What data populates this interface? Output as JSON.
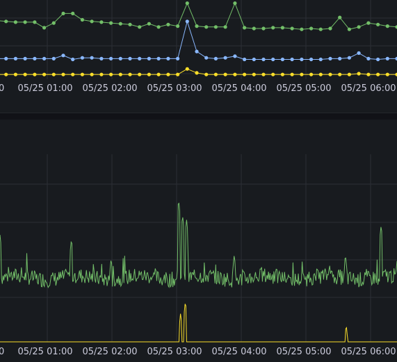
{
  "colors": {
    "background": "#111217",
    "panel": "#181b1f",
    "grid": "#2c2f35",
    "text": "#ccccdc",
    "green": "#73bf69",
    "blue": "#8ab8ff",
    "yellow": "#fade2a"
  },
  "chart_data": [
    {
      "type": "line",
      "x_tick_labels": [
        "00",
        "05/25 01:00",
        "05/25 02:00",
        "05/25 03:00",
        "05/25 04:00",
        "05/25 05:00",
        "05/25 06:00"
      ],
      "grid": true,
      "series": [
        {
          "color_key": "green",
          "points": "markers",
          "values": [
            0.74,
            0.73,
            0.72,
            0.72,
            0.72,
            0.65,
            0.71,
            0.83,
            0.83,
            0.75,
            0.73,
            0.72,
            0.71,
            0.7,
            0.69,
            0.66,
            0.7,
            0.66,
            0.69,
            0.67,
            0.96,
            0.67,
            0.66,
            0.66,
            0.66,
            0.96,
            0.65,
            0.64,
            0.64,
            0.65,
            0.65,
            0.64,
            0.63,
            0.64,
            0.63,
            0.64,
            0.78,
            0.63,
            0.66,
            0.71,
            0.69,
            0.67,
            0.66
          ]
        },
        {
          "color_key": "blue",
          "points": "markers",
          "values": [
            0.26,
            0.26,
            0.26,
            0.26,
            0.26,
            0.26,
            0.26,
            0.3,
            0.25,
            0.27,
            0.27,
            0.26,
            0.26,
            0.26,
            0.26,
            0.26,
            0.26,
            0.26,
            0.26,
            0.26,
            0.73,
            0.35,
            0.27,
            0.26,
            0.27,
            0.29,
            0.25,
            0.25,
            0.25,
            0.25,
            0.25,
            0.25,
            0.25,
            0.25,
            0.25,
            0.26,
            0.26,
            0.27,
            0.33,
            0.26,
            0.25,
            0.26,
            0.26
          ]
        },
        {
          "color_key": "yellow",
          "points": "markers",
          "values": [
            0.06,
            0.06,
            0.06,
            0.06,
            0.06,
            0.06,
            0.06,
            0.06,
            0.06,
            0.06,
            0.06,
            0.06,
            0.06,
            0.06,
            0.06,
            0.06,
            0.06,
            0.06,
            0.06,
            0.06,
            0.13,
            0.08,
            0.06,
            0.06,
            0.06,
            0.06,
            0.06,
            0.06,
            0.06,
            0.06,
            0.06,
            0.06,
            0.06,
            0.06,
            0.06,
            0.06,
            0.06,
            0.06,
            0.07,
            0.06,
            0.06,
            0.06,
            0.06
          ]
        }
      ]
    },
    {
      "type": "line",
      "x_tick_labels": [
        "00",
        "05/25 01:00",
        "05/25 02:00",
        "05/25 03:00",
        "05/25 04:00",
        "05/25 05:00",
        "05/25 06:00"
      ],
      "grid": true,
      "series": [
        {
          "color_key": "green",
          "points": "none",
          "noisy": true,
          "base": 0.33,
          "spikes": [
            {
              "at": 0.0,
              "h": 0.55
            },
            {
              "at": 0.18,
              "h": 0.53
            },
            {
              "at": 0.28,
              "h": 0.43
            },
            {
              "at": 0.45,
              "h": 0.73
            },
            {
              "at": 0.46,
              "h": 0.65
            },
            {
              "at": 0.47,
              "h": 0.63
            },
            {
              "at": 0.59,
              "h": 0.45
            },
            {
              "at": 0.83,
              "h": 0.4
            },
            {
              "at": 0.87,
              "h": 0.45
            },
            {
              "at": 0.96,
              "h": 0.6
            }
          ]
        },
        {
          "color_key": "yellow",
          "points": "none",
          "noisy": false,
          "base": 0.0,
          "spikes": [
            {
              "at": 0.455,
              "h": 0.15
            },
            {
              "at": 0.467,
              "h": 0.21
            },
            {
              "at": 0.872,
              "h": 0.09
            }
          ]
        }
      ]
    }
  ]
}
